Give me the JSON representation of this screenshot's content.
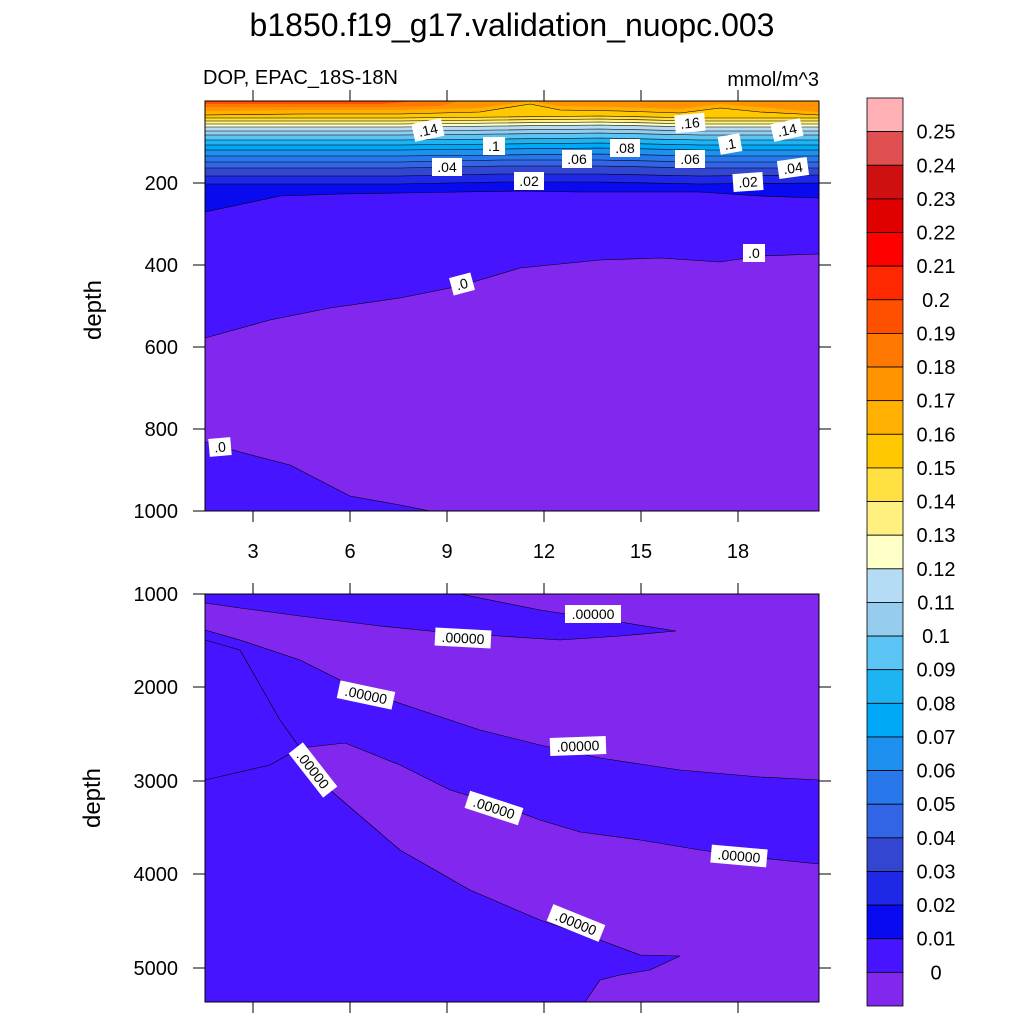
{
  "title": "b1850.f19_g17.validation_nuopc.003",
  "subtitle_left": "DOP, EPAC_18S-18N",
  "units": "mmol/m^3",
  "colorbar": {
    "labels": [
      "0.25",
      "0.24",
      "0.23",
      "0.22",
      "0.21",
      "0.2",
      "0.19",
      "0.18",
      "0.17",
      "0.16",
      "0.15",
      "0.14",
      "0.13",
      "0.12",
      "0.11",
      "0.1",
      "0.09",
      "0.08",
      "0.07",
      "0.06",
      "0.05",
      "0.04",
      "0.03",
      "0.02",
      "0.01",
      "0"
    ],
    "colors": [
      "#FEB0B4",
      "#E05050",
      "#CF1010",
      "#E00000",
      "#FF0000",
      "#FF2800",
      "#FF5000",
      "#FF7800",
      "#FF9400",
      "#FFB000",
      "#FFC800",
      "#FFE040",
      "#FFF080",
      "#FFFFC8",
      "#B4DCF4",
      "#96CCEE",
      "#5AC4F4",
      "#1EB4F4",
      "#00A8F8",
      "#1E90F0",
      "#2878EC",
      "#3264E6",
      "#3246D2",
      "#1E28E6",
      "#0A0AF0",
      "#4614FF",
      "#8228EE"
    ]
  },
  "chart_data": [
    {
      "type": "contour",
      "panel": "upper",
      "ylabel": "depth",
      "xticks": [
        "3",
        "6",
        "9",
        "12",
        "15",
        "18"
      ],
      "yticks": [
        "200",
        "400",
        "600",
        "800",
        "1000"
      ],
      "x_range": [
        1,
        20
      ],
      "y_range": [
        0,
        1000
      ],
      "y_reversed": true,
      "contour_labels": [
        ".14",
        ".1",
        ".04",
        ".06",
        ".08",
        ".16",
        ".06",
        ".1",
        ".14",
        ".04",
        ".02",
        ".02",
        ".0",
        ".0",
        ".0"
      ]
    },
    {
      "type": "contour",
      "panel": "lower",
      "ylabel": "depth",
      "xticks": [
        "3",
        "6",
        "9",
        "12",
        "15",
        "18"
      ],
      "yticks": [
        "1000",
        "2000",
        "3000",
        "4000",
        "5000"
      ],
      "x_range": [
        1,
        20
      ],
      "y_range": [
        1000,
        5400
      ],
      "y_reversed": true,
      "contour_labels": [
        ".00000",
        ".00000",
        ".00000",
        ".00000",
        ".00000",
        ".00000",
        ".00000",
        ".00000"
      ]
    }
  ]
}
